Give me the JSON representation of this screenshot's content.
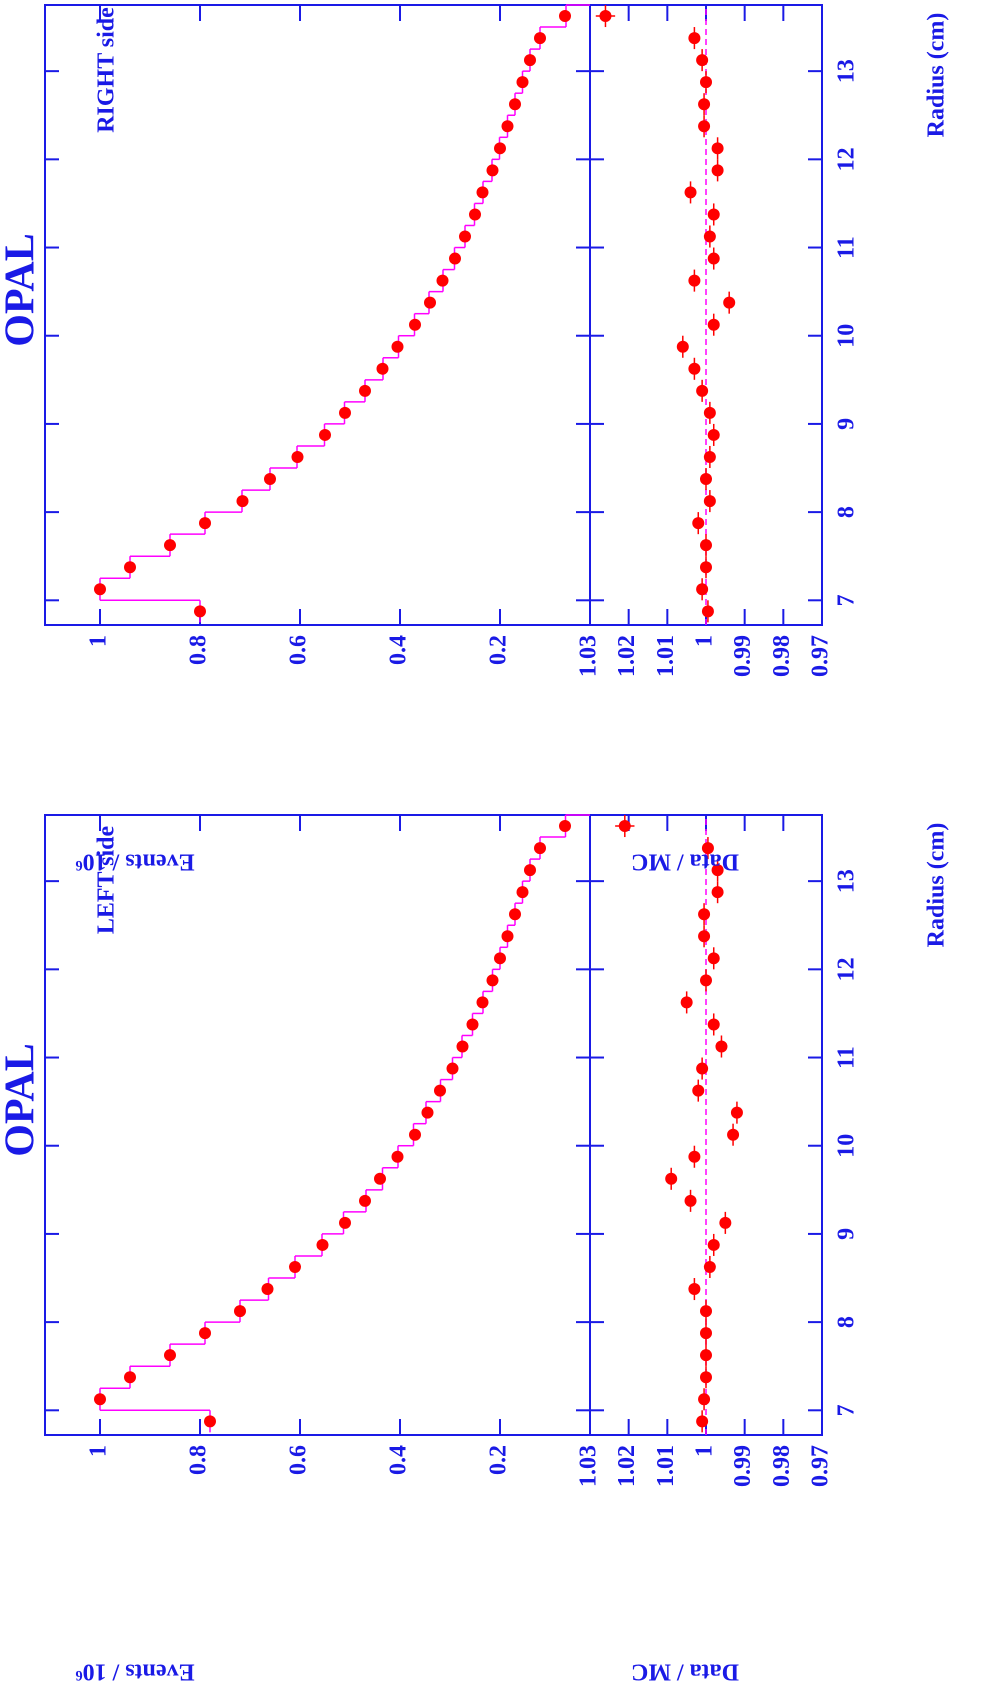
{
  "chart_data": [
    {
      "type": "ratio_histogram",
      "title": "OPAL",
      "annotation": "LEFT side",
      "x_label": "Radius (cm)",
      "y_label": "Events / 10⁶",
      "ratio_label": "Data / MC",
      "bins": [
        6.75,
        7.0,
        7.25,
        7.5,
        7.75,
        8.0,
        8.25,
        8.5,
        8.75,
        9.0,
        9.25,
        9.5,
        9.75,
        10.0,
        10.25,
        10.5,
        10.75,
        11.0,
        11.25,
        11.5,
        11.75,
        12.0,
        12.25,
        12.5,
        12.75,
        13.0,
        13.25,
        13.5,
        13.75
      ],
      "values": [
        0.78,
        1.0,
        0.94,
        0.86,
        0.79,
        0.72,
        0.665,
        0.61,
        0.555,
        0.51,
        0.47,
        0.44,
        0.405,
        0.37,
        0.345,
        0.32,
        0.295,
        0.275,
        0.255,
        0.235,
        0.215,
        0.2,
        0.185,
        0.17,
        0.155,
        0.14,
        0.12,
        0.07
      ],
      "mc_values": [
        0.78,
        1.0,
        0.94,
        0.86,
        0.79,
        0.72,
        0.663,
        0.61,
        0.556,
        0.513,
        0.468,
        0.435,
        0.404,
        0.373,
        0.348,
        0.319,
        0.295,
        0.276,
        0.255,
        0.234,
        0.215,
        0.2,
        0.185,
        0.17,
        0.155,
        0.14,
        0.12,
        0.069
      ],
      "ratio_values": [
        1.001,
        1.0005,
        1.0,
        1.0,
        1.0,
        1.0,
        1.003,
        0.999,
        0.998,
        0.995,
        1.004,
        1.009,
        1.003,
        0.993,
        0.992,
        1.002,
        1.001,
        0.996,
        0.998,
        1.005,
        1.0,
        0.998,
        1.0005,
        1.0005,
        0.997,
        0.997,
        0.9995,
        1.021
      ],
      "ratio_errors": [
        0.0012,
        0.0012,
        0.0012,
        0.0012,
        0.0012,
        0.0012,
        0.0012,
        0.0012,
        0.0012,
        0.0012,
        0.0012,
        0.0012,
        0.0012,
        0.0012,
        0.0012,
        0.0012,
        0.0012,
        0.0012,
        0.0012,
        0.0014,
        0.0014,
        0.0014,
        0.0014,
        0.0014,
        0.0014,
        0.0014,
        0.0014,
        0.0025
      ],
      "ratio_reference": 1,
      "xlim": [
        6.72,
        13.75
      ],
      "xticks": [
        7,
        8,
        9,
        10,
        11,
        12,
        13
      ],
      "ylim": [
        0.02,
        1.11
      ],
      "yticks": [
        0.2,
        0.4,
        0.6,
        0.8,
        1
      ],
      "ratio_ylim": [
        0.97,
        1.03
      ],
      "ratio_yticks": [
        0.97,
        0.98,
        0.99,
        1,
        1.01,
        1.02,
        1.03
      ],
      "point_color": "#ff0000",
      "histogram_color": "#ff00ff",
      "axis_color": "#1a1ae6"
    },
    {
      "type": "ratio_histogram",
      "title": "OPAL",
      "annotation": "RIGHT side",
      "x_label": "Radius (cm)",
      "y_label": "Events / 10⁶",
      "ratio_label": "Data / MC",
      "bins": [
        6.75,
        7.0,
        7.25,
        7.5,
        7.75,
        8.0,
        8.25,
        8.5,
        8.75,
        9.0,
        9.25,
        9.5,
        9.75,
        10.0,
        10.25,
        10.5,
        10.75,
        11.0,
        11.25,
        11.5,
        11.75,
        12.0,
        12.25,
        12.5,
        12.75,
        13.0,
        13.25,
        13.5,
        13.75
      ],
      "values": [
        0.8,
        1.0,
        0.94,
        0.86,
        0.79,
        0.715,
        0.66,
        0.605,
        0.55,
        0.51,
        0.47,
        0.435,
        0.405,
        0.37,
        0.34,
        0.315,
        0.29,
        0.27,
        0.25,
        0.235,
        0.215,
        0.2,
        0.185,
        0.17,
        0.155,
        0.14,
        0.12,
        0.07
      ],
      "mc_values": [
        0.8,
        1.0,
        0.94,
        0.86,
        0.79,
        0.716,
        0.66,
        0.606,
        0.551,
        0.511,
        0.47,
        0.434,
        0.403,
        0.371,
        0.342,
        0.314,
        0.291,
        0.27,
        0.251,
        0.234,
        0.216,
        0.201,
        0.185,
        0.17,
        0.155,
        0.14,
        0.12,
        0.068
      ],
      "ratio_values": [
        0.9995,
        1.001,
        1.0,
        1.0,
        1.002,
        0.999,
        1.0,
        0.999,
        0.998,
        0.999,
        1.001,
        1.003,
        1.006,
        0.998,
        0.994,
        1.003,
        0.998,
        0.999,
        0.998,
        1.004,
        0.997,
        0.997,
        1.0005,
        1.0005,
        1.0,
        1.001,
        1.003,
        1.026
      ],
      "ratio_errors": [
        0.0012,
        0.0012,
        0.0012,
        0.0012,
        0.0012,
        0.0012,
        0.0012,
        0.0012,
        0.0012,
        0.0012,
        0.0012,
        0.0012,
        0.0012,
        0.0012,
        0.0012,
        0.0012,
        0.0012,
        0.0012,
        0.0012,
        0.0014,
        0.0014,
        0.0014,
        0.0014,
        0.0014,
        0.0014,
        0.0014,
        0.0014,
        0.0025
      ],
      "ratio_reference": 1,
      "xlim": [
        6.72,
        13.75
      ],
      "xticks": [
        7,
        8,
        9,
        10,
        11,
        12,
        13
      ],
      "ylim": [
        0.02,
        1.11
      ],
      "yticks": [
        0.2,
        0.4,
        0.6,
        0.8,
        1
      ],
      "ratio_ylim": [
        0.97,
        1.03
      ],
      "ratio_yticks": [
        0.97,
        0.98,
        0.99,
        1,
        1.01,
        1.02,
        1.03
      ],
      "point_color": "#ff0000",
      "histogram_color": "#ff00ff",
      "axis_color": "#1a1ae6"
    }
  ]
}
